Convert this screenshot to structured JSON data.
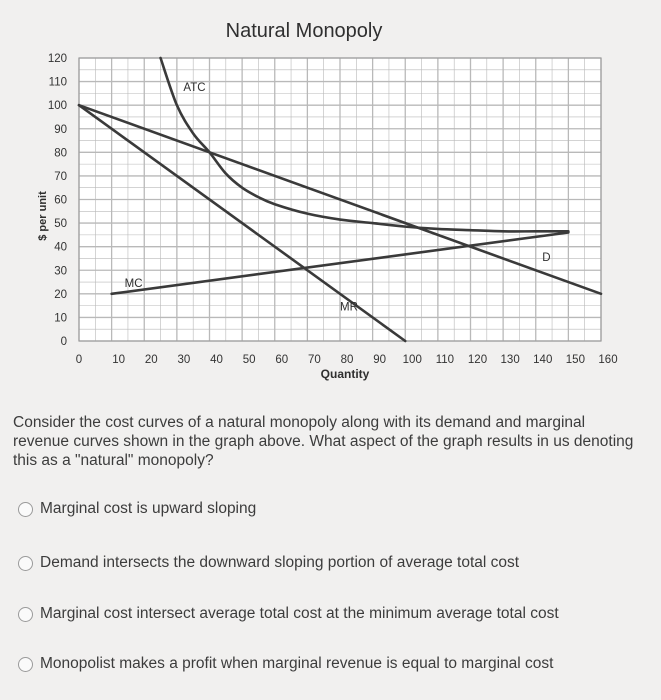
{
  "chart_data": {
    "type": "line",
    "title": "Natural Monopoly",
    "xlabel": "Quantity",
    "ylabel": "$ per unit",
    "xlim": [
      0,
      160
    ],
    "ylim": [
      0,
      120
    ],
    "x_ticks": [
      0,
      10,
      20,
      30,
      40,
      50,
      60,
      70,
      80,
      90,
      100,
      110,
      120,
      130,
      140,
      150,
      160
    ],
    "y_ticks": [
      0,
      10,
      20,
      30,
      40,
      50,
      60,
      70,
      80,
      90,
      100,
      110,
      120
    ],
    "grid": true,
    "series": [
      {
        "name": "ATC",
        "points": [
          [
            25,
            120
          ],
          [
            30,
            100
          ],
          [
            35,
            88
          ],
          [
            40,
            80
          ],
          [
            45,
            71
          ],
          [
            50,
            65
          ],
          [
            55,
            61
          ],
          [
            60,
            58
          ],
          [
            70,
            54
          ],
          [
            80,
            51.5
          ],
          [
            90,
            50
          ],
          [
            100,
            48.5
          ],
          [
            110,
            47.5
          ],
          [
            120,
            47
          ],
          [
            130,
            46.5
          ],
          [
            140,
            46.5
          ],
          [
            150,
            46.5
          ]
        ]
      },
      {
        "name": "D",
        "points": [
          [
            0,
            100
          ],
          [
            160,
            20
          ]
        ]
      },
      {
        "name": "MR",
        "points": [
          [
            0,
            100
          ],
          [
            100,
            0
          ]
        ]
      },
      {
        "name": "MC",
        "points": [
          [
            10,
            20
          ],
          [
            150,
            46
          ]
        ]
      }
    ],
    "labels": [
      {
        "text": "ATC",
        "x": 32,
        "y": 106
      },
      {
        "text": "MC",
        "x": 14,
        "y": 23
      },
      {
        "text": "MR",
        "x": 80,
        "y": 13
      },
      {
        "text": "D",
        "x": 142,
        "y": 34
      }
    ],
    "colors": {
      "line": "#3a3a3a",
      "grid": "#b9b9b9",
      "background": "#ffffff"
    }
  },
  "question": {
    "text": "Consider the cost curves of a natural monopoly along with its demand and marginal revenue curves shown in the graph above. What aspect of the graph results in us denoting this as a \"natural\" monopoly?"
  },
  "options": [
    {
      "label": "Marginal cost is upward sloping"
    },
    {
      "label": "Demand intersects the downward sloping portion of average total cost"
    },
    {
      "label": "Marginal cost intersect average total cost at the minimum average total cost"
    },
    {
      "label": "Monopolist makes a profit when marginal revenue is equal to marginal cost"
    }
  ]
}
